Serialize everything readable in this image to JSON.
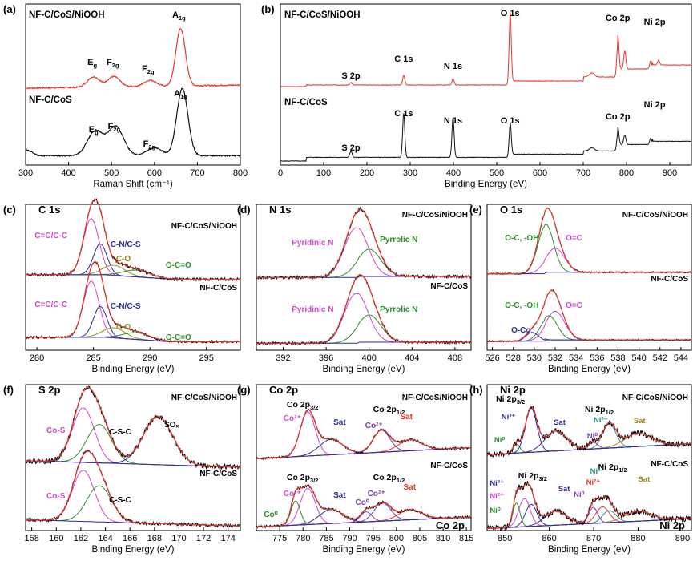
{
  "colors": {
    "red": "#e8352a",
    "black": "#111111",
    "magenta": "#d048c8",
    "navy": "#2d2d9a",
    "olive": "#a08a1a",
    "green": "#2b8f2b",
    "purple": "#7a3fb0",
    "teal": "#2a8a8a",
    "fitRed": "#e8352a",
    "bg": "#2a2aa8"
  },
  "chart_data": [
    {
      "id": "a",
      "panel_label": "(a)",
      "type": "line",
      "xlabel": "Raman Shift (cm⁻¹)",
      "xlim": [
        300,
        800
      ],
      "xticks": [
        "300",
        "400",
        "500",
        "600",
        "700",
        "800"
      ],
      "series": [
        {
          "name": "NF-C/CoS/NiOOH",
          "color": "red"
        },
        {
          "name": "NF-C/CoS",
          "color": "black"
        }
      ],
      "peaks_top": [
        {
          "x": 458,
          "h": 0.1
        },
        {
          "x": 505,
          "h": 0.1
        },
        {
          "x": 590,
          "h": 0.06
        },
        {
          "x": 661,
          "h": 0.55
        }
      ],
      "peaks_bot": [
        {
          "x": 462,
          "h": 0.22
        },
        {
          "x": 510,
          "h": 0.26
        },
        {
          "x": 600,
          "h": 0.07
        },
        {
          "x": 665,
          "h": 0.6
        }
      ],
      "annotations": [
        {
          "main": "E",
          "sub": "g"
        },
        {
          "main": "F",
          "sub": "2g"
        },
        {
          "main": "F",
          "sub": "2g"
        },
        {
          "main": "A",
          "sub": "1g"
        },
        {
          "main": "E",
          "sub": "g"
        },
        {
          "main": "F",
          "sub": "2g"
        },
        {
          "main": "F",
          "sub": "2g"
        },
        {
          "main": "A",
          "sub": "1g"
        }
      ]
    },
    {
      "id": "b",
      "panel_label": "(b)",
      "type": "line",
      "xlabel": "Binding Energy (eV)",
      "xlim": [
        0,
        950
      ],
      "xticks": [
        "0",
        "100",
        "200",
        "300",
        "400",
        "500",
        "600",
        "700",
        "800",
        "900"
      ],
      "series": [
        {
          "name": "NF-C/CoS/NiOOH",
          "color": "red"
        },
        {
          "name": "NF-C/CoS",
          "color": "black"
        }
      ],
      "peaks_top": [
        {
          "x": 163,
          "h": 0.03
        },
        {
          "x": 285,
          "h": 0.12
        },
        {
          "x": 399,
          "h": 0.08
        },
        {
          "x": 531,
          "h": 0.85
        },
        {
          "x": 780,
          "h": 0.42
        },
        {
          "x": 796,
          "h": 0.22
        },
        {
          "x": 856,
          "h": 0.1
        },
        {
          "x": 874,
          "h": 0.06
        }
      ],
      "peaks_bot": [
        {
          "x": 163,
          "h": 0.08
        },
        {
          "x": 285,
          "h": 0.55
        },
        {
          "x": 399,
          "h": 0.5
        },
        {
          "x": 531,
          "h": 0.4
        },
        {
          "x": 780,
          "h": 0.22
        },
        {
          "x": 796,
          "h": 0.12
        },
        {
          "x": 856,
          "h": 0.08
        }
      ],
      "annotations": [
        "S 2p",
        "C 1s",
        "N 1s",
        "O 1s",
        "Co 2p",
        "Ni 2p",
        "S 2p",
        "C 1s",
        "N 1s",
        "O 1s",
        "Co 2p",
        "Ni 2p"
      ]
    },
    {
      "id": "c",
      "panel_label": "(c)",
      "title": "C 1s",
      "type": "line",
      "xlabel": "Binding Energy (eV)",
      "xlim": [
        279,
        298
      ],
      "xticks": [
        "280",
        "285",
        "290",
        "295"
      ],
      "series": [
        {
          "name": "NF-C/CoS/NiOOH"
        },
        {
          "name": "NF-C/CoS"
        }
      ],
      "components": [
        {
          "label": "C=C/C-C",
          "color": "magenta",
          "x": 284.8,
          "w": 0.7,
          "h": 1.0
        },
        {
          "label": "C-N/C-S",
          "color": "navy",
          "x": 285.6,
          "w": 0.6,
          "h": 0.55
        },
        {
          "label": "C-O",
          "color": "olive",
          "x": 286.8,
          "w": 1.0,
          "h": 0.18
        },
        {
          "label": "O-C=O",
          "color": "green",
          "x": 288.8,
          "w": 1.2,
          "h": 0.12
        }
      ]
    },
    {
      "id": "d",
      "panel_label": "(d)",
      "title": "N 1s",
      "type": "line",
      "xlabel": "Binding Energy (eV)",
      "xlim": [
        389.5,
        409.5
      ],
      "xticks": [
        "392",
        "396",
        "400",
        "404",
        "408"
      ],
      "series": [
        {
          "name": "NF-C/CoS/NiOOH"
        },
        {
          "name": "NF-C/CoS"
        }
      ],
      "components": [
        {
          "label": "Pyridinic N",
          "color": "magenta",
          "x": 398.8,
          "w": 1.1,
          "h": 1.0
        },
        {
          "label": "Pyrrolic N",
          "color": "green",
          "x": 400.0,
          "w": 1.1,
          "h": 0.55
        }
      ]
    },
    {
      "id": "e",
      "panel_label": "(e)",
      "title": "O 1s",
      "type": "line",
      "xlabel": "Binding Energy (eV)",
      "xlim": [
        525.5,
        545
      ],
      "xticks": [
        "526",
        "528",
        "530",
        "532",
        "534",
        "536",
        "538",
        "540",
        "542",
        "544"
      ],
      "series": [
        {
          "name": "NF-C/CoS/NiOOH"
        },
        {
          "name": "NF-C/CoS"
        }
      ],
      "components": [
        {
          "label": "O-C, -OH",
          "color": "green",
          "x": 531.1,
          "w": 0.75,
          "h": 1.0
        },
        {
          "label": "O=C",
          "color": "magenta",
          "x": 532.0,
          "w": 0.9,
          "h": 0.5
        },
        {
          "label": "O-Co",
          "color": "navy",
          "x": 529.8,
          "w": 0.6,
          "h": 0.2
        }
      ]
    },
    {
      "id": "f",
      "panel_label": "(f)",
      "title": "S 2p",
      "type": "line",
      "xlabel": "Binding Energy (eV)",
      "xlim": [
        157.5,
        175
      ],
      "xticks": [
        "158",
        "160",
        "162",
        "164",
        "166",
        "168",
        "170",
        "172",
        "174"
      ],
      "series": [
        {
          "name": "NF-C/CoS/NiOOH"
        },
        {
          "name": "NF-C/CoS"
        }
      ],
      "components": [
        {
          "label": "Co-S",
          "color": "magenta",
          "x": 162.2,
          "w": 0.9,
          "h": 0.85
        },
        {
          "label": "C-S-C",
          "color": "green",
          "x": 163.5,
          "w": 1.0,
          "h": 0.6
        },
        {
          "label": "SOₓ",
          "color": "navy",
          "x": 168.3,
          "w": 1.2,
          "h": 0.75
        }
      ]
    },
    {
      "id": "g",
      "panel_label": "(g)",
      "title": "Co 2p",
      "type": "line",
      "xlabel": "Binding Energy (eV)",
      "xlim": [
        770,
        816
      ],
      "xticks": [
        "775",
        "780",
        "785",
        "790",
        "795",
        "800",
        "805",
        "810",
        "815"
      ],
      "series": [
        {
          "name": "NF-C/CoS/NiOOH"
        },
        {
          "name": "NF-C/CoS"
        }
      ],
      "components": [
        {
          "label": "Co⁰",
          "color": "green",
          "x": 778.4,
          "w": 1.0
        },
        {
          "label": "Co²⁺",
          "color": "magenta",
          "x": 781.0,
          "w": 1.6,
          "h": 1.0
        },
        {
          "label": "Sat",
          "color": "navy",
          "x": 786.0,
          "w": 2.5,
          "h": 0.35
        },
        {
          "label": "Co²⁺",
          "color": "purple",
          "x": 796.8,
          "w": 1.8,
          "h": 0.5
        },
        {
          "label": "Sat",
          "color": "red",
          "x": 803.0,
          "w": 2.5,
          "h": 0.25
        }
      ]
    },
    {
      "id": "h",
      "panel_label": "(h)",
      "title": "Ni 2p",
      "type": "line",
      "xlabel": "Binding Energy (eV)",
      "xlim": [
        846,
        892
      ],
      "xticks": [
        "850",
        "860",
        "870",
        "880",
        "890"
      ],
      "series": [
        {
          "name": "NF-C/CoS/NiOOH"
        },
        {
          "name": "NF-C/CoS"
        }
      ],
      "components": [
        {
          "label": "Ni⁰",
          "color": "green",
          "x": 852.6
        },
        {
          "label": "Ni³⁺",
          "color": "navy",
          "x": 855.9
        },
        {
          "label": "Ni²⁺",
          "color": "magenta",
          "x": 854.4
        },
        {
          "label": "Sat",
          "color": "navy",
          "x": 861.5
        },
        {
          "label": "Ni⁰",
          "color": "purple",
          "x": 869.9
        },
        {
          "label": "Ni³⁺",
          "color": "teal",
          "x": 873.5
        },
        {
          "label": "Ni²⁺",
          "color": "red",
          "x": 872.0
        },
        {
          "label": "Sat",
          "color": "olive",
          "x": 880.0
        }
      ]
    }
  ],
  "texts": {
    "a_s1": "NF-C/CoS/NiOOH",
    "a_s2": "NF-C/CoS",
    "b_s1": "NF-C/CoS/NiOOH",
    "b_s2": "NF-C/CoS",
    "g_lab1": "Co 2p",
    "g_lab2": "3/2",
    "g_lab3": "Co 2p",
    "g_lab4": "1/2",
    "h_lab1": "Ni 2p",
    "h_lab2": "3/2",
    "h_lab3": "Ni 2p",
    "h_lab4": "1/2",
    "g_corner": "Co 2p",
    "h_corner": "Ni 2p"
  }
}
